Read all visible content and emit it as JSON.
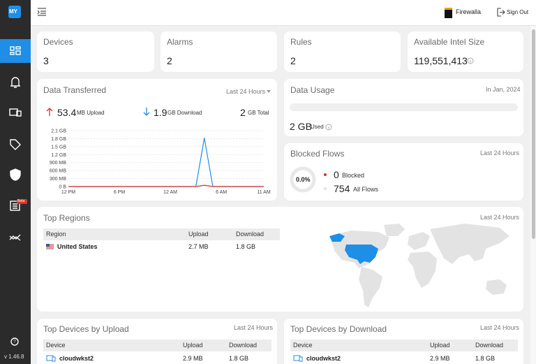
{
  "sidebar": {
    "logo": "MY",
    "beta_badge": "Beta",
    "help": "?",
    "version": "v 1.46.8"
  },
  "header": {
    "box": "Firewalla",
    "sign_out": "Sign Out"
  },
  "stats": [
    {
      "label": "Devices",
      "value": 3
    },
    {
      "label": "Alarms",
      "value": 2
    },
    {
      "label": "Rules",
      "value": 2
    },
    {
      "label": "Available Intel Size",
      "value": "119,551,413"
    }
  ],
  "data_transferred": {
    "title": "Data Transferred",
    "period": "Last 24 Hours",
    "upload": {
      "value": 53.4,
      "unit": "MB Upload"
    },
    "download": {
      "value": 1.9,
      "unit": "GB Download"
    },
    "total": {
      "value": 2,
      "unit": "GB Total"
    },
    "chart": {
      "type": "line",
      "x": [
        0,
        1,
        2,
        3,
        4,
        5,
        6,
        7,
        8,
        9,
        10,
        11,
        12,
        13,
        14,
        15,
        16,
        17,
        18,
        19,
        20,
        21,
        22,
        23
      ],
      "xlim": [
        0,
        23
      ],
      "xticks": [
        {
          "value": 0,
          "label": "12 PM"
        },
        {
          "value": 6,
          "label": "6 PM"
        },
        {
          "value": 12,
          "label": "12 AM"
        },
        {
          "value": 18,
          "label": "6 AM"
        },
        {
          "value": 23,
          "label": "11 AM"
        }
      ],
      "ylim": [
        0,
        2.1
      ],
      "yticks": [
        {
          "value": 0,
          "label": "0 B"
        },
        {
          "value": 0.3,
          "label": "300 MB"
        },
        {
          "value": 0.6,
          "label": "600 MB"
        },
        {
          "value": 0.9,
          "label": "900 MB"
        },
        {
          "value": 1.2,
          "label": "1.2 GB"
        },
        {
          "value": 1.5,
          "label": "1.5 GB"
        },
        {
          "value": 1.8,
          "label": "1.8 GB"
        },
        {
          "value": 2.1,
          "label": "2.1 GB"
        }
      ],
      "grid": true,
      "series": [
        {
          "color": "#1f8ee6",
          "values": [
            0,
            0,
            0,
            0,
            0,
            0,
            0,
            0,
            0,
            0,
            0,
            0,
            0,
            0,
            0,
            0,
            1.82,
            0,
            0,
            0,
            0,
            0,
            0,
            0
          ]
        },
        {
          "color": "#d9342b",
          "values": [
            0,
            0,
            0,
            0,
            0,
            0,
            0,
            0,
            0,
            0,
            0,
            0,
            0,
            0,
            0,
            0,
            0.05,
            0,
            0,
            0,
            0,
            0,
            0,
            0
          ]
        }
      ]
    }
  },
  "data_usage": {
    "title": "Data Usage",
    "period": "In Jan, 2024",
    "used_value": "2 GB",
    "used_label": "Used"
  },
  "blocked_flows": {
    "title": "Blocked Flows",
    "period": "Last 24 Hours",
    "percent": "0.0%",
    "blocked": {
      "value": 0,
      "label": "Blocked"
    },
    "all": {
      "value": 754,
      "label": "All Flows"
    }
  },
  "top_regions": {
    "title": "Top Regions",
    "period": "Last 24 Hours",
    "columns": [
      "Region",
      "Upload",
      "Download"
    ],
    "rows": [
      [
        "United States",
        "2.7 MB",
        "1.8 GB"
      ]
    ]
  },
  "top_devices_upload": {
    "title": "Top Devices by Upload",
    "period": "Last 24 Hours",
    "columns": [
      "Device",
      "Upload",
      "Download"
    ],
    "rows": [
      [
        "cloudwkst2",
        "2.9 MB",
        "1.8 GB"
      ]
    ]
  },
  "top_devices_download": {
    "title": "Top Devices by Download",
    "period": "Last 24 Hours",
    "columns": [
      "Device",
      "Upload",
      "Download"
    ],
    "rows": [
      [
        "cloudwkst2",
        "2.9 MB",
        "1.8 GB"
      ]
    ]
  }
}
